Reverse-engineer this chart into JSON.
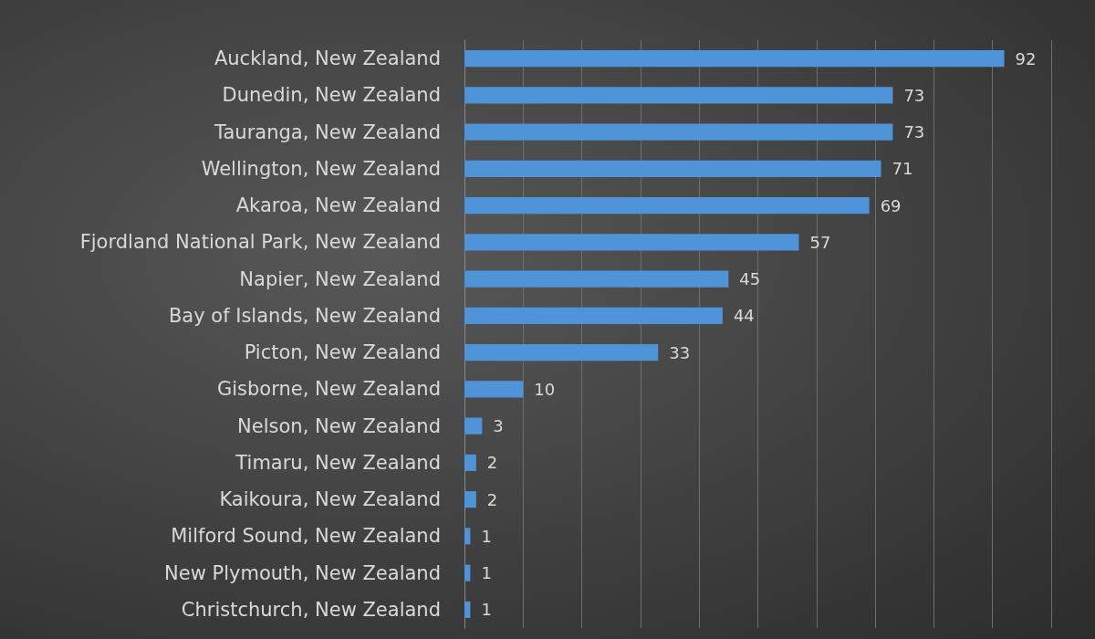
{
  "chart_data": {
    "type": "bar",
    "orientation": "horizontal",
    "categories": [
      "Auckland, New Zealand",
      "Dunedin, New Zealand",
      "Tauranga, New Zealand",
      "Wellington, New Zealand",
      "Akaroa, New Zealand",
      "Fjordland National Park, New Zealand",
      "Napier, New Zealand",
      "Bay of Islands, New Zealand",
      "Picton, New Zealand",
      "Gisborne, New Zealand",
      "Nelson, New Zealand",
      "Timaru, New Zealand",
      "Kaikoura, New Zealand",
      "Milford Sound, New Zealand",
      "New Plymouth, New Zealand",
      "Christchurch, New Zealand"
    ],
    "values": [
      92,
      73,
      73,
      71,
      69,
      57,
      45,
      44,
      33,
      10,
      3,
      2,
      2,
      1,
      1,
      1
    ],
    "color": "#4f93d8",
    "xlim": [
      0,
      100
    ],
    "xticks": [
      0,
      10,
      20,
      30,
      40,
      50,
      60,
      70,
      80,
      90,
      100
    ],
    "tick_labels": "y",
    "grid": "x",
    "data_labels": true
  }
}
